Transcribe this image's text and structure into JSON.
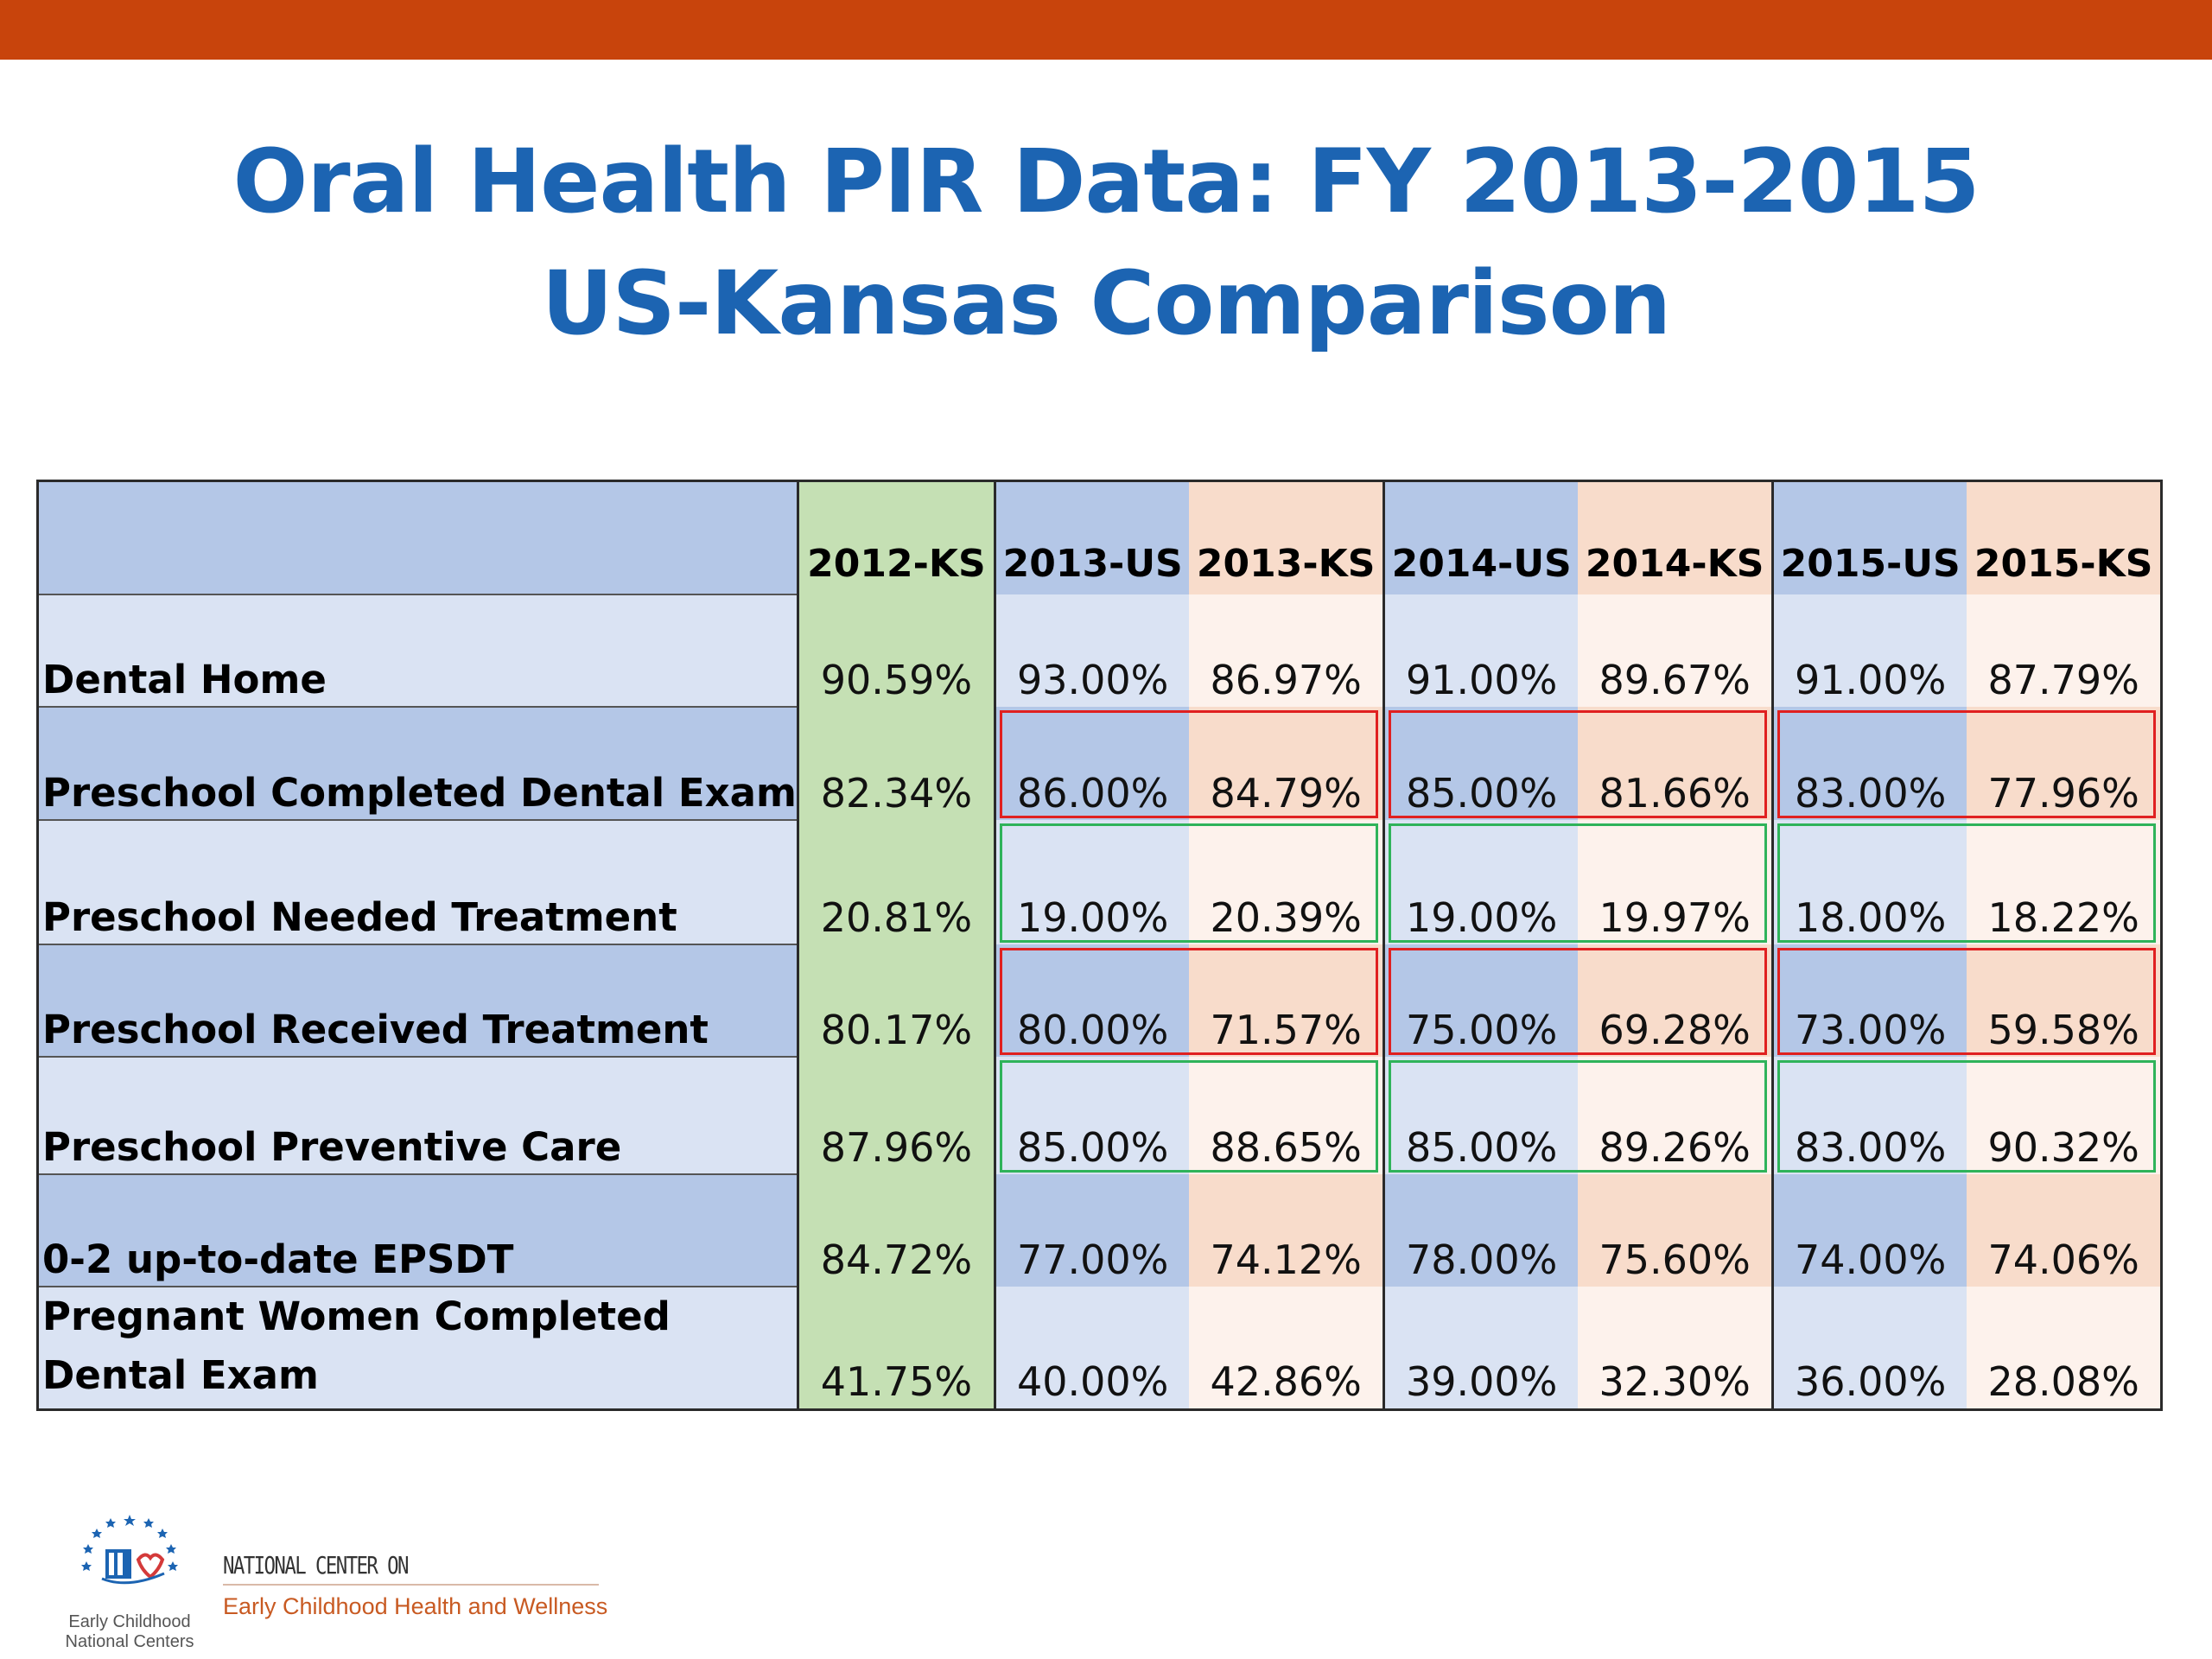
{
  "colors": {
    "top_bar": "#c8440c",
    "title": "#1c64b2",
    "header_blue": "#b4c7e7",
    "row_blue_dark": "#b4c7e7",
    "row_blue_light": "#dae3f3",
    "ks2012_green": "#c5e0b4",
    "us_dark": "#b4c7e7",
    "us_light": "#dae3f3",
    "ks_dark": "#f8dccb",
    "ks_light": "#fdf2ec",
    "box_red": "#e02020",
    "box_green": "#2fb35a"
  },
  "title": {
    "line1": "Oral Health PIR Data: FY 2013-2015",
    "line2": "US-Kansas Comparison"
  },
  "table": {
    "columns": [
      "2012-KS",
      "2013-US",
      "2013-KS",
      "2014-US",
      "2014-KS",
      "2015-US",
      "2015-KS"
    ],
    "rows": [
      {
        "label": "Dental Home",
        "values": [
          "90.59%",
          "93.00%",
          "86.97%",
          "91.00%",
          "89.67%",
          "91.00%",
          "87.79%"
        ],
        "highlight": ""
      },
      {
        "label": "Preschool Completed Dental Exam",
        "values": [
          "82.34%",
          "86.00%",
          "84.79%",
          "85.00%",
          "81.66%",
          "83.00%",
          "77.96%"
        ],
        "highlight": "red"
      },
      {
        "label": "Preschool Needed Treatment",
        "values": [
          "20.81%",
          "19.00%",
          "20.39%",
          "19.00%",
          "19.97%",
          "18.00%",
          "18.22%"
        ],
        "highlight": "green"
      },
      {
        "label": "Preschool Received Treatment",
        "values": [
          "80.17%",
          "80.00%",
          "71.57%",
          "75.00%",
          "69.28%",
          "73.00%",
          "59.58%"
        ],
        "highlight": "red"
      },
      {
        "label": "Preschool Preventive Care",
        "values": [
          "87.96%",
          "85.00%",
          "88.65%",
          "85.00%",
          "89.26%",
          "83.00%",
          "90.32%"
        ],
        "highlight": "green"
      },
      {
        "label": "0-2 up-to-date EPSDT",
        "values": [
          "84.72%",
          "77.00%",
          "74.12%",
          "78.00%",
          "75.60%",
          "74.00%",
          "74.06%"
        ],
        "highlight": ""
      },
      {
        "label": "Pregnant Women Completed Dental Exam",
        "values": [
          "41.75%",
          "40.00%",
          "42.86%",
          "39.00%",
          "32.30%",
          "36.00%",
          "28.08%"
        ],
        "highlight": ""
      }
    ]
  },
  "footer": {
    "logo_caption_1": "Early Childhood",
    "logo_caption_2": "National Centers",
    "line1": "NATIONAL CENTER ON",
    "line2": "Early Childhood Health and Wellness"
  },
  "icons": {
    "logo": "early-childhood-logo-icon"
  }
}
